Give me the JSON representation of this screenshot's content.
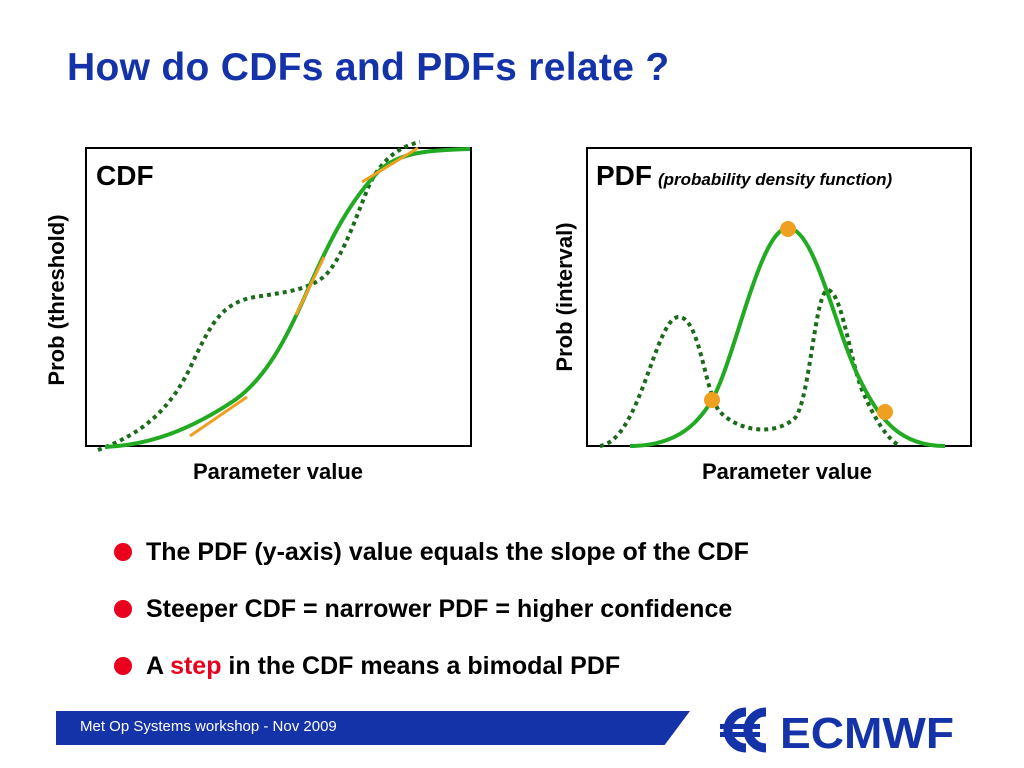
{
  "slide": {
    "title": "How do CDFs and PDFs relate ?",
    "footer": "Met Op Systems workshop - Nov 2009",
    "logo_text": "ECMWF"
  },
  "colors": {
    "title": "#1533a8",
    "curve": "#22aa22",
    "dotted": "#1b6b1b",
    "tangent": "#f0a020",
    "bullet": "#e8001c",
    "footer": "#1533a8"
  },
  "cdf_panel": {
    "label": "CDF",
    "ylabel": "Prob (threshold)",
    "xlabel": "Parameter value"
  },
  "pdf_panel": {
    "label": "PDF",
    "sublabel": "(probability density function)",
    "ylabel": "Prob (interval)",
    "xlabel": "Parameter value"
  },
  "bullets": [
    {
      "text": "The PDF (y-axis) value equals the slope of the CDF"
    },
    {
      "text": "Steeper CDF = narrower PDF = higher confidence"
    },
    {
      "pre": "A ",
      "highlight": "step",
      "post": " in the CDF means a bimodal PDF"
    }
  ]
}
